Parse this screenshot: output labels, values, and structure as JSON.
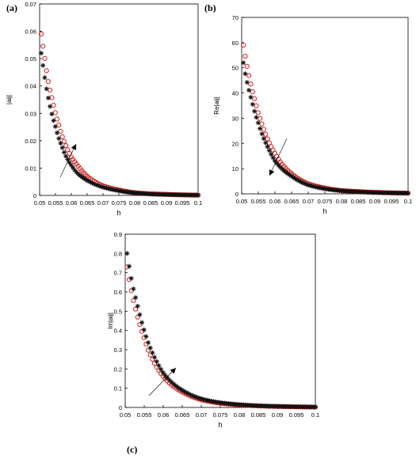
{
  "chart_data": [
    {
      "panel": "(a)",
      "type": "scatter",
      "xlabel": "h",
      "ylabel": "|aij|",
      "xlim": [
        0.05,
        0.1
      ],
      "ylim": [
        0,
        0.07
      ],
      "xticks": [
        "0.05",
        "0.055",
        "0.06",
        "0.065",
        "0.07",
        "0.075",
        "0.08",
        "0.085",
        "0.09",
        "0.095",
        "0.1"
      ],
      "yticks": [
        "0",
        "0.01",
        "0.02",
        "0.03",
        "0.04",
        "0.05",
        "0.06",
        "0.07"
      ],
      "series": [
        {
          "marker": "circle",
          "color": "#d0201c",
          "x": [
            0.0505,
            0.051,
            0.0515,
            0.052,
            0.0525,
            0.053,
            0.054,
            0.055,
            0.056,
            0.057,
            0.058,
            0.06,
            0.062,
            0.065,
            0.07,
            0.075,
            0.08,
            0.085,
            0.09,
            0.095,
            0.1
          ],
          "y": [
            0.059,
            0.055,
            0.051,
            0.047,
            0.043,
            0.04,
            0.035,
            0.03,
            0.026,
            0.022,
            0.019,
            0.014,
            0.011,
            0.007,
            0.0035,
            0.002,
            0.001,
            0.0006,
            0.0004,
            0.0002,
            0.0001
          ]
        },
        {
          "marker": "star",
          "color": "#111111",
          "x": [
            0.0505,
            0.051,
            0.0515,
            0.052,
            0.0525,
            0.053,
            0.054,
            0.055,
            0.056,
            0.057,
            0.058,
            0.06,
            0.062,
            0.065,
            0.07,
            0.075,
            0.08,
            0.085,
            0.09,
            0.095,
            0.1
          ],
          "y": [
            0.052,
            0.048,
            0.044,
            0.04,
            0.037,
            0.034,
            0.029,
            0.025,
            0.021,
            0.018,
            0.015,
            0.011,
            0.008,
            0.0055,
            0.003,
            0.0017,
            0.0009,
            0.0005,
            0.0003,
            0.0002,
            0.0001
          ]
        }
      ],
      "arrow_direction": "up"
    },
    {
      "panel": "(b)",
      "type": "scatter",
      "xlabel": "h",
      "ylabel": "Re|aij|",
      "xlim": [
        0.05,
        0.1
      ],
      "ylim": [
        0,
        70
      ],
      "xticks": [
        "0.05",
        "0.055",
        "0.06",
        "0.065",
        "0.07",
        "0.075",
        "0.08",
        "0.085",
        "0.09",
        "0.095",
        "0.1"
      ],
      "yticks": [
        "0",
        "10",
        "20",
        "30",
        "40",
        "50",
        "60",
        "70"
      ],
      "series": [
        {
          "marker": "circle",
          "color": "#d0201c",
          "x": [
            0.0505,
            0.051,
            0.052,
            0.053,
            0.054,
            0.055,
            0.056,
            0.058,
            0.06,
            0.062,
            0.065,
            0.07,
            0.075,
            0.08,
            0.085,
            0.09,
            0.095,
            0.1
          ],
          "y": [
            59,
            55,
            48,
            42,
            37,
            32,
            28,
            21,
            16,
            12,
            8,
            4,
            2.3,
            1.3,
            0.9,
            0.6,
            0.4,
            0.3
          ]
        },
        {
          "marker": "star",
          "color": "#111111",
          "x": [
            0.0505,
            0.051,
            0.052,
            0.053,
            0.054,
            0.055,
            0.056,
            0.058,
            0.06,
            0.062,
            0.065,
            0.07,
            0.075,
            0.08,
            0.085,
            0.09,
            0.095,
            0.1
          ],
          "y": [
            52,
            48,
            42,
            37,
            32,
            28,
            24,
            18,
            13,
            10,
            7,
            3.5,
            2,
            1.2,
            0.8,
            0.5,
            0.35,
            0.25
          ]
        }
      ],
      "arrow_direction": "down"
    },
    {
      "panel": "(c)",
      "type": "scatter",
      "xlabel": "h",
      "ylabel": "Im|aij|",
      "xlim": [
        0.05,
        0.1
      ],
      "ylim": [
        0,
        0.9
      ],
      "xticks": [
        "0.05",
        "0.055",
        "0.06",
        "0.065",
        "0.07",
        "0.075",
        "0.08",
        "0.085",
        "0.09",
        "0.095",
        "0.1"
      ],
      "yticks": [
        "0",
        "0.1",
        "0.2",
        "0.3",
        "0.4",
        "0.5",
        "0.6",
        "0.7",
        "0.8",
        "0.9"
      ],
      "series": [
        {
          "marker": "circle",
          "color": "#d0201c",
          "x": [
            0.0505,
            0.051,
            0.052,
            0.053,
            0.054,
            0.055,
            0.056,
            0.058,
            0.06,
            0.062,
            0.065,
            0.07,
            0.075,
            0.08,
            0.085,
            0.09,
            0.095,
            0.1
          ],
          "y": [
            0.73,
            0.67,
            0.57,
            0.49,
            0.42,
            0.36,
            0.3,
            0.22,
            0.16,
            0.12,
            0.08,
            0.04,
            0.022,
            0.013,
            0.008,
            0.005,
            0.003,
            0.002
          ]
        },
        {
          "marker": "star",
          "color": "#111111",
          "x": [
            0.0505,
            0.051,
            0.052,
            0.053,
            0.054,
            0.055,
            0.056,
            0.058,
            0.06,
            0.062,
            0.065,
            0.07,
            0.075,
            0.08,
            0.085,
            0.09,
            0.095,
            0.1
          ],
          "y": [
            0.8,
            0.74,
            0.63,
            0.55,
            0.47,
            0.4,
            0.34,
            0.25,
            0.18,
            0.135,
            0.09,
            0.045,
            0.025,
            0.015,
            0.009,
            0.006,
            0.004,
            0.002
          ]
        }
      ],
      "arrow_direction": "up"
    }
  ],
  "colors": {
    "red_marker": "#d0201c",
    "black_marker": "#111111",
    "axis": "#000000"
  }
}
